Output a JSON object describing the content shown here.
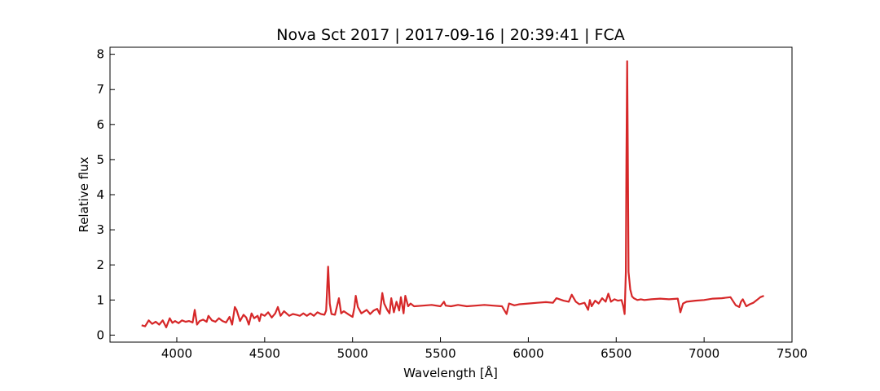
{
  "chart_data": {
    "type": "line",
    "title": "Nova Sct 2017 | 2017-09-16 | 20:39:41 | FCA",
    "xlabel": "Wavelength [Å]",
    "ylabel": "Relative flux",
    "xlim": [
      3620,
      7500
    ],
    "ylim": [
      -0.2,
      8.2
    ],
    "grid": false,
    "x_ticks": [
      4000,
      4500,
      5000,
      5500,
      6000,
      6500,
      7000,
      7500
    ],
    "y_ticks": [
      0,
      1,
      2,
      3,
      4,
      5,
      6,
      7,
      8
    ],
    "series": [
      {
        "color": "#d62728",
        "x": [
          3800,
          3820,
          3840,
          3860,
          3880,
          3900,
          3920,
          3940,
          3960,
          3975,
          3990,
          4010,
          4030,
          4050,
          4070,
          4090,
          4102,
          4115,
          4130,
          4150,
          4170,
          4180,
          4200,
          4220,
          4240,
          4260,
          4280,
          4300,
          4315,
          4330,
          4340,
          4360,
          4380,
          4395,
          4410,
          4425,
          4440,
          4460,
          4470,
          4480,
          4500,
          4520,
          4540,
          4560,
          4575,
          4590,
          4610,
          4640,
          4660,
          4680,
          4700,
          4720,
          4740,
          4760,
          4780,
          4800,
          4820,
          4840,
          4850,
          4861,
          4870,
          4880,
          4900,
          4922,
          4935,
          4950,
          4980,
          5000,
          5010,
          5018,
          5030,
          5050,
          5080,
          5100,
          5120,
          5140,
          5155,
          5169,
          5180,
          5197,
          5210,
          5220,
          5235,
          5250,
          5265,
          5275,
          5290,
          5300,
          5316,
          5330,
          5350,
          5400,
          5450,
          5500,
          5520,
          5530,
          5560,
          5600,
          5650,
          5700,
          5750,
          5800,
          5850,
          5876,
          5890,
          5920,
          5950,
          6000,
          6050,
          6100,
          6140,
          6160,
          6200,
          6230,
          6247,
          6270,
          6290,
          6320,
          6340,
          6350,
          6360,
          6380,
          6400,
          6420,
          6440,
          6455,
          6470,
          6490,
          6510,
          6530,
          6540,
          6548,
          6555,
          6558,
          6562,
          6566,
          6570,
          6580,
          6590,
          6600,
          6620,
          6640,
          6660,
          6700,
          6750,
          6800,
          6850,
          6865,
          6880,
          6900,
          6950,
          7000,
          7050,
          7100,
          7150,
          7180,
          7200,
          7210,
          7220,
          7240,
          7260,
          7280,
          7300,
          7320,
          7340
        ],
        "y": [
          0.28,
          0.25,
          0.42,
          0.32,
          0.38,
          0.3,
          0.42,
          0.22,
          0.48,
          0.35,
          0.4,
          0.34,
          0.42,
          0.38,
          0.4,
          0.36,
          0.72,
          0.3,
          0.4,
          0.44,
          0.38,
          0.55,
          0.42,
          0.38,
          0.48,
          0.4,
          0.36,
          0.52,
          0.3,
          0.8,
          0.72,
          0.4,
          0.58,
          0.5,
          0.3,
          0.62,
          0.48,
          0.55,
          0.4,
          0.6,
          0.55,
          0.65,
          0.5,
          0.62,
          0.8,
          0.55,
          0.68,
          0.55,
          0.6,
          0.58,
          0.55,
          0.62,
          0.55,
          0.62,
          0.55,
          0.65,
          0.6,
          0.58,
          0.7,
          1.95,
          0.9,
          0.6,
          0.58,
          1.05,
          0.62,
          0.68,
          0.58,
          0.52,
          0.78,
          1.12,
          0.8,
          0.62,
          0.72,
          0.6,
          0.7,
          0.75,
          0.6,
          1.2,
          0.9,
          0.72,
          0.62,
          1.05,
          0.65,
          0.95,
          0.7,
          1.08,
          0.62,
          1.12,
          0.82,
          0.9,
          0.82,
          0.84,
          0.86,
          0.82,
          0.95,
          0.84,
          0.82,
          0.86,
          0.82,
          0.84,
          0.86,
          0.84,
          0.82,
          0.6,
          0.9,
          0.85,
          0.88,
          0.9,
          0.92,
          0.94,
          0.92,
          1.05,
          0.98,
          0.95,
          1.15,
          0.95,
          0.88,
          0.92,
          0.72,
          1.0,
          0.82,
          0.98,
          0.9,
          1.05,
          0.95,
          1.18,
          0.95,
          1.02,
          0.98,
          1.0,
          0.82,
          0.6,
          1.8,
          5.0,
          7.8,
          5.2,
          1.8,
          1.3,
          1.1,
          1.05,
          1.0,
          1.02,
          1.0,
          1.02,
          1.04,
          1.02,
          1.04,
          0.65,
          0.9,
          0.95,
          0.98,
          1.0,
          1.04,
          1.05,
          1.08,
          0.85,
          0.8,
          0.95,
          1.02,
          0.82,
          0.88,
          0.92,
          1.0,
          1.08,
          1.12
        ]
      }
    ]
  }
}
